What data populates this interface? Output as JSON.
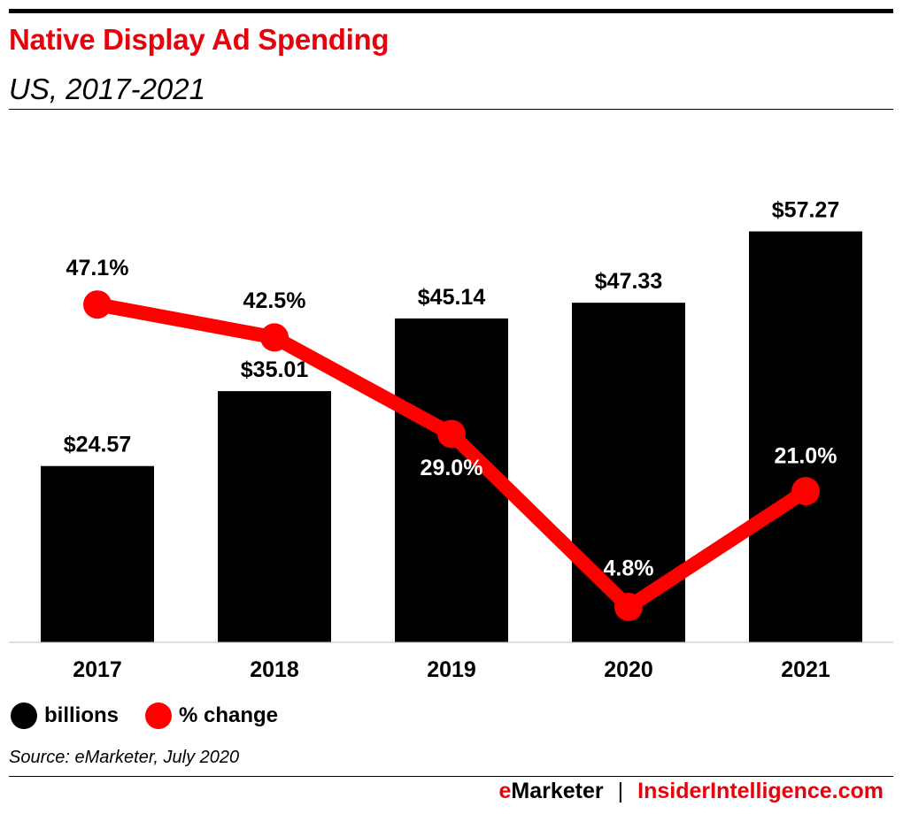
{
  "header": {
    "title": "Native Display Ad Spending",
    "subtitle": "US, 2017-2021"
  },
  "chart_data": {
    "type": "bar",
    "categories": [
      "2017",
      "2018",
      "2019",
      "2020",
      "2021"
    ],
    "series": [
      {
        "name": "billions",
        "type": "bar",
        "values": [
          24.57,
          35.01,
          45.14,
          47.33,
          57.27
        ],
        "labels": [
          "$24.57",
          "$35.01",
          "$45.14",
          "$47.33",
          "$57.27"
        ],
        "color": "#000000"
      },
      {
        "name": "% change",
        "type": "line",
        "values": [
          47.1,
          42.5,
          29.0,
          4.8,
          21.0
        ],
        "labels": [
          "47.1%",
          "42.5%",
          "29.0%",
          "4.8%",
          "21.0%"
        ],
        "color": "#ff0000"
      }
    ],
    "legend_position": "bottom-left",
    "grid": false
  },
  "legend": {
    "items": [
      {
        "label": "billions",
        "color": "#000000"
      },
      {
        "label": "% change",
        "color": "#ff0000"
      }
    ]
  },
  "source": "Source: eMarketer, July 2020",
  "footer": {
    "brand_e": "e",
    "brand_rest": "Marketer",
    "separator": "|",
    "site": "InsiderIntelligence.com"
  }
}
